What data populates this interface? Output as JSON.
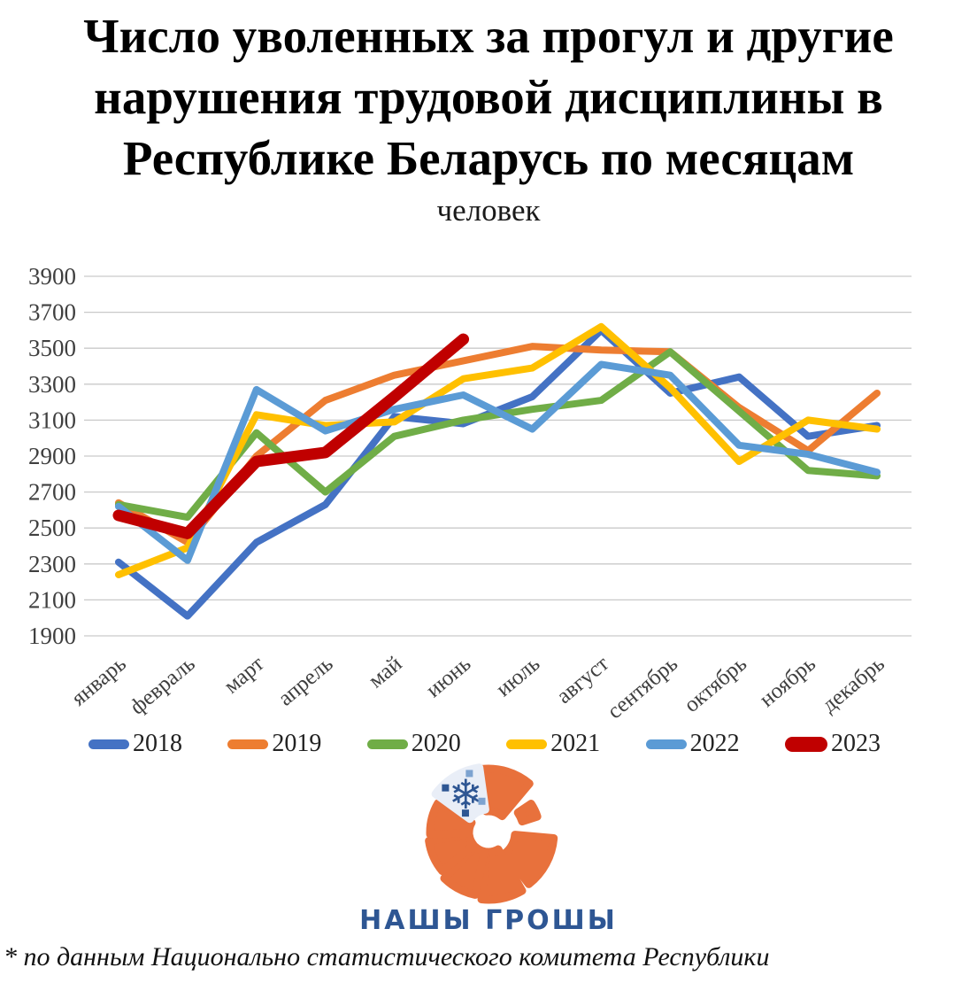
{
  "title_lines": [
    "Число уволенных за прогул и другие",
    "нарушения трудовой дисциплины в",
    "Республике Беларусь по месяцам"
  ],
  "subtitle": "человек",
  "footnote": "* по данным Национально статистического комитета Республики",
  "logo": {
    "text": "НАШЫ ГРОШЫ",
    "snowflake_icon": "❄",
    "orange": "#E8713C",
    "blue": "#2E5693"
  },
  "chart_data": {
    "type": "line",
    "categories": [
      "январь",
      "февраль",
      "март",
      "апрель",
      "май",
      "июнь",
      "июль",
      "август",
      "сентябрь",
      "октябрь",
      "ноябрь",
      "декабрь"
    ],
    "series": [
      {
        "name": "2018",
        "color": "#4472C4",
        "line_width": 8,
        "values": [
          2310,
          2010,
          2420,
          2630,
          3120,
          3080,
          3230,
          3600,
          3250,
          3340,
          3010,
          3070
        ]
      },
      {
        "name": "2019",
        "color": "#ED7D31",
        "line_width": 8,
        "values": [
          2640,
          2420,
          2900,
          3210,
          3350,
          3430,
          3510,
          3490,
          3480,
          3170,
          2930,
          3250
        ]
      },
      {
        "name": "2020",
        "color": "#70AD47",
        "line_width": 8,
        "values": [
          2630,
          2560,
          3030,
          2700,
          3010,
          3100,
          3160,
          3210,
          3480,
          3150,
          2820,
          2790
        ]
      },
      {
        "name": "2021",
        "color": "#FFC000",
        "line_width": 8,
        "values": [
          2240,
          2390,
          3130,
          3070,
          3090,
          3330,
          3390,
          3620,
          3280,
          2870,
          3100,
          3050
        ]
      },
      {
        "name": "2022",
        "color": "#5B9BD5",
        "line_width": 8,
        "values": [
          2620,
          2320,
          3270,
          3040,
          3160,
          3240,
          3050,
          3410,
          3350,
          2960,
          2910,
          2810
        ]
      },
      {
        "name": "2023",
        "color": "#C00000",
        "line_width": 13,
        "values": [
          2570,
          2470,
          2870,
          2920,
          3230,
          3550,
          null,
          null,
          null,
          null,
          null,
          null
        ]
      }
    ],
    "title": "Число уволенных за прогул и другие нарушения трудовой дисциплины в Республике Беларусь по месяцам",
    "xlabel": "",
    "ylabel": "человек",
    "ylim": [
      1900,
      3900
    ],
    "ytick_step": 200,
    "grid": true,
    "grid_color": "#C9C9C9",
    "tick_label_color": "#3f3f3f",
    "legend_position": "bottom"
  }
}
